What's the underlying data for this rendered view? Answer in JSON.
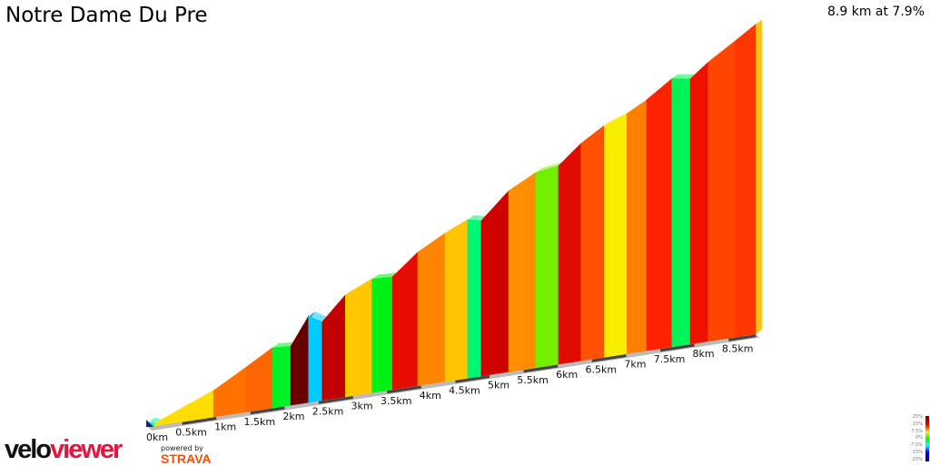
{
  "title": "Notre Dame Du Pre",
  "summary": "8.9 km at 7.9%",
  "branding": {
    "velo": "velo",
    "viewer": "viewer",
    "powered_by": "powered by",
    "strava": "STRAVA"
  },
  "legend": {
    "labels": [
      "25%",
      "15%",
      "7.5%",
      "0%",
      "-7.5%",
      "-15%",
      "-25%"
    ]
  },
  "chart_data": {
    "type": "area",
    "title": "Notre Dame Du Pre",
    "xlabel": "",
    "ylabel": "",
    "x_unit": "km",
    "tick_labels": [
      "0km",
      "0.5km",
      "1km",
      "1.5km",
      "2km",
      "2.5km",
      "3km",
      "3.5km",
      "4km",
      "4.5km",
      "5km",
      "5.5km",
      "6km",
      "6.5km",
      "7km",
      "7.5km",
      "8km",
      "8.5km"
    ],
    "tick_values": [
      0,
      0.5,
      1,
      1.5,
      2,
      2.5,
      3,
      3.5,
      4,
      4.5,
      5,
      5.5,
      6,
      6.5,
      7,
      7.5,
      8,
      8.5
    ],
    "xlim": [
      0,
      8.9
    ],
    "color_by": "gradient",
    "gradient_color_stops": [
      {
        "g": -25,
        "color": "#000080"
      },
      {
        "g": -15,
        "color": "#0000ff"
      },
      {
        "g": -7.5,
        "color": "#00ffff"
      },
      {
        "g": 0,
        "color": "#00ee00"
      },
      {
        "g": 3.5,
        "color": "#c0f000"
      },
      {
        "g": 6,
        "color": "#ffee00"
      },
      {
        "g": 8,
        "color": "#ff9a00"
      },
      {
        "g": 11,
        "color": "#ff1a00"
      },
      {
        "g": 15,
        "color": "#cc0000"
      },
      {
        "g": 25,
        "color": "#600000"
      }
    ],
    "profile": {
      "distance_km": [
        0,
        0.1,
        0.96,
        1.43,
        1.82,
        2.09,
        2.35,
        2.55,
        2.89,
        3.28,
        3.58,
        3.95,
        4.35,
        4.68,
        4.88,
        5.28,
        5.68,
        6.01,
        6.34,
        6.68,
        7.01,
        7.3,
        7.67,
        7.94,
        8.2,
        8.6,
        8.9
      ],
      "elevation_m": [
        0,
        -5,
        50,
        92,
        128,
        125,
        188,
        170,
        224,
        251,
        249,
        297,
        331,
        354,
        347,
        406,
        439,
        446,
        490,
        523,
        542,
        567,
        607,
        600,
        632,
        672,
        703
      ]
    }
  }
}
